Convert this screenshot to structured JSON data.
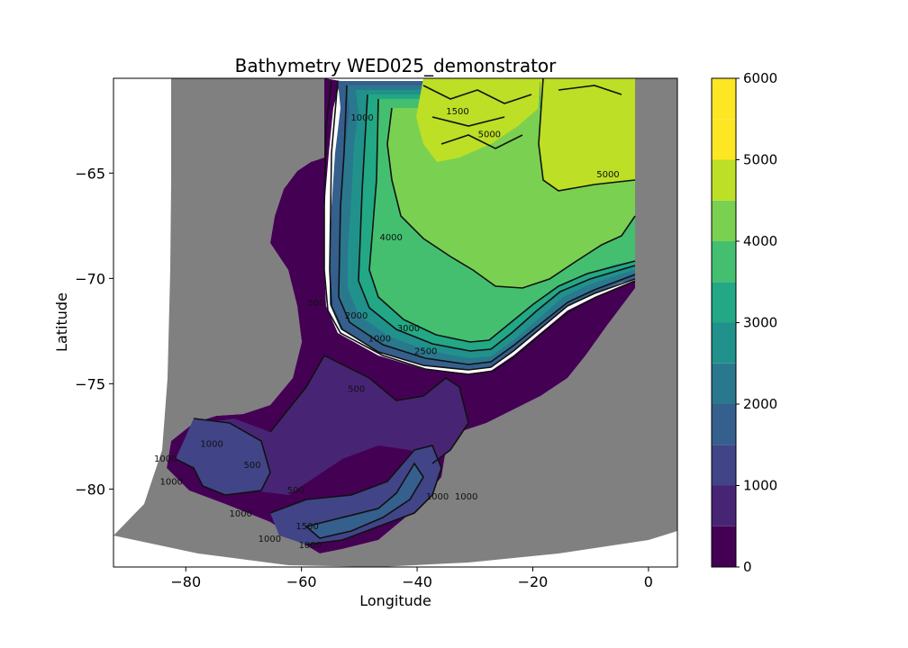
{
  "chart_data": {
    "type": "heatmap",
    "title": "Bathymetry  WED025_demonstrator",
    "xlabel": "Longitude",
    "ylabel": "Latitude",
    "xlim": [
      -92.5,
      5
    ],
    "ylim": [
      -83.7,
      -60.5
    ],
    "xticks": [
      -80,
      -60,
      -40,
      -20,
      0
    ],
    "yticks": [
      -65,
      -70,
      -75,
      -80
    ],
    "grid": false,
    "colorbar": {
      "range": [
        0,
        6000
      ],
      "levels": [
        0,
        500,
        1000,
        1500,
        2000,
        2500,
        3000,
        3500,
        4000,
        4500,
        5000,
        5500,
        6000
      ],
      "ticks": [
        0,
        1000,
        2000,
        3000,
        4000,
        5000,
        6000
      ],
      "colors": [
        "#440154",
        "#482475",
        "#414487",
        "#355f8d",
        "#2a788e",
        "#21918c",
        "#22a884",
        "#44bf70",
        "#7ad151",
        "#bddf26",
        "#fde725",
        "#fde725"
      ]
    },
    "contour_labels": [
      {
        "text": "1000",
        "lon": -49.5,
        "lat": -62.5
      },
      {
        "text": "1500",
        "lon": -33,
        "lat": -62.2
      },
      {
        "text": "5000",
        "lon": -27.5,
        "lat": -63.3
      },
      {
        "text": "5000",
        "lon": -7,
        "lat": -65.2
      },
      {
        "text": "4000",
        "lon": -44.5,
        "lat": -68.2
      },
      {
        "text": "500",
        "lon": -57.5,
        "lat": -71.3
      },
      {
        "text": "2000",
        "lon": -50.5,
        "lat": -71.9
      },
      {
        "text": "3000",
        "lon": -41.5,
        "lat": -72.5
      },
      {
        "text": "1000",
        "lon": -46.5,
        "lat": -73.0
      },
      {
        "text": "2500",
        "lon": -38.5,
        "lat": -73.6
      },
      {
        "text": "500",
        "lon": -50.5,
        "lat": -75.4
      },
      {
        "text": "1000",
        "lon": -75.5,
        "lat": -78.0
      },
      {
        "text": "1000",
        "lon": -83.5,
        "lat": -78.7
      },
      {
        "text": "500",
        "lon": -68.5,
        "lat": -79.0
      },
      {
        "text": "1000",
        "lon": -82.5,
        "lat": -79.8
      },
      {
        "text": "500",
        "lon": -61,
        "lat": -80.2
      },
      {
        "text": "1000",
        "lon": -70.5,
        "lat": -81.3
      },
      {
        "text": "1000",
        "lon": -36.5,
        "lat": -80.5
      },
      {
        "text": "1000",
        "lon": -31.5,
        "lat": -80.5
      },
      {
        "text": "1500",
        "lon": -59,
        "lat": -81.9
      },
      {
        "text": "1000",
        "lon": -65.5,
        "lat": -82.5
      },
      {
        "text": "1000",
        "lon": -58.5,
        "lat": -82.8
      }
    ]
  }
}
